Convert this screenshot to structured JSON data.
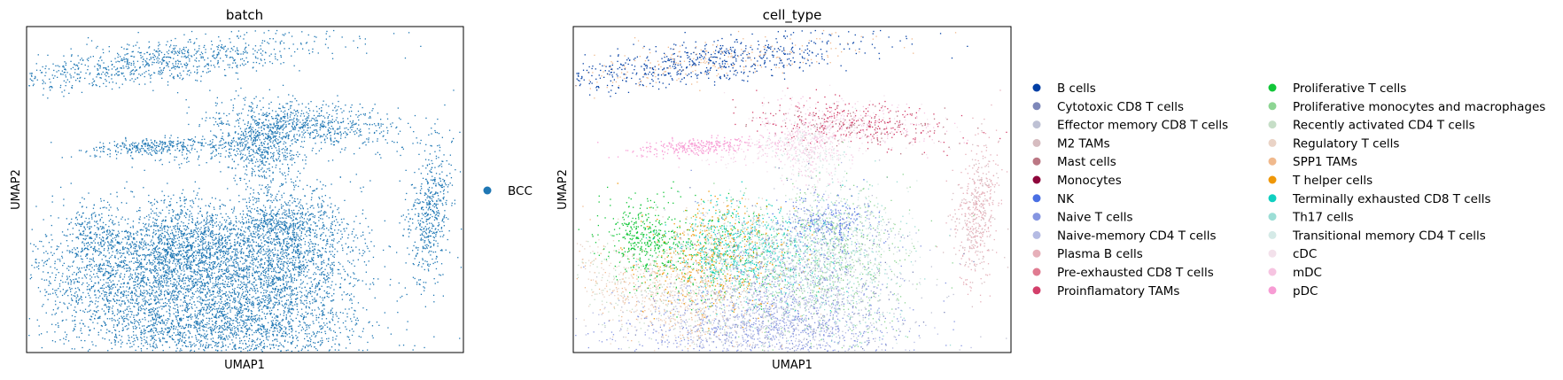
{
  "chart_data": [
    {
      "type": "scatter",
      "title": "batch",
      "xlabel": "UMAP1",
      "ylabel": "UMAP2",
      "grid": false,
      "legend_placement": "right",
      "legend": [
        {
          "label": "BCC",
          "color": "#1f77b4"
        }
      ]
    },
    {
      "type": "scatter",
      "title": "cell_type",
      "xlabel": "UMAP1",
      "ylabel": "UMAP2",
      "grid": false,
      "legend_placement": "right",
      "legend": [
        {
          "label": "B cells",
          "color": "#023fa5"
        },
        {
          "label": "Cytotoxic CD8 T cells",
          "color": "#7d87b9"
        },
        {
          "label": "Effector memory CD8 T cells",
          "color": "#bec1d4"
        },
        {
          "label": "M2 TAMs",
          "color": "#d6bcc0"
        },
        {
          "label": "Mast cells",
          "color": "#bb7784"
        },
        {
          "label": "Monocytes",
          "color": "#8e063b"
        },
        {
          "label": "NK",
          "color": "#4a6fe3"
        },
        {
          "label": "Naive T cells",
          "color": "#8595e1"
        },
        {
          "label": "Naive-memory CD4 T cells",
          "color": "#b5bbe3"
        },
        {
          "label": "Plasma B cells",
          "color": "#e6afb9"
        },
        {
          "label": "Pre-exhausted CD8 T cells",
          "color": "#e07b91"
        },
        {
          "label": "Proinflamatory TAMs",
          "color": "#d33f6a"
        },
        {
          "label": "Proliferative T cells",
          "color": "#11c638"
        },
        {
          "label": "Proliferative monocytes and macrophages",
          "color": "#8dd593"
        },
        {
          "label": "Recently activated CD4 T cells",
          "color": "#c6dec7"
        },
        {
          "label": "Regulatory T cells",
          "color": "#ead3c6"
        },
        {
          "label": "SPP1 TAMs",
          "color": "#f0b98d"
        },
        {
          "label": "T helper cells",
          "color": "#ef9708"
        },
        {
          "label": "Terminally exhausted CD8 T cells",
          "color": "#0fcfc0"
        },
        {
          "label": "Th17 cells",
          "color": "#9cded6"
        },
        {
          "label": "Transitional memory CD4 T cells",
          "color": "#d5eae7"
        },
        {
          "label": "cDC",
          "color": "#f3e1eb"
        },
        {
          "label": "mDC",
          "color": "#f6c4e1"
        },
        {
          "label": "pDC",
          "color": "#f79cd4"
        }
      ]
    }
  ]
}
